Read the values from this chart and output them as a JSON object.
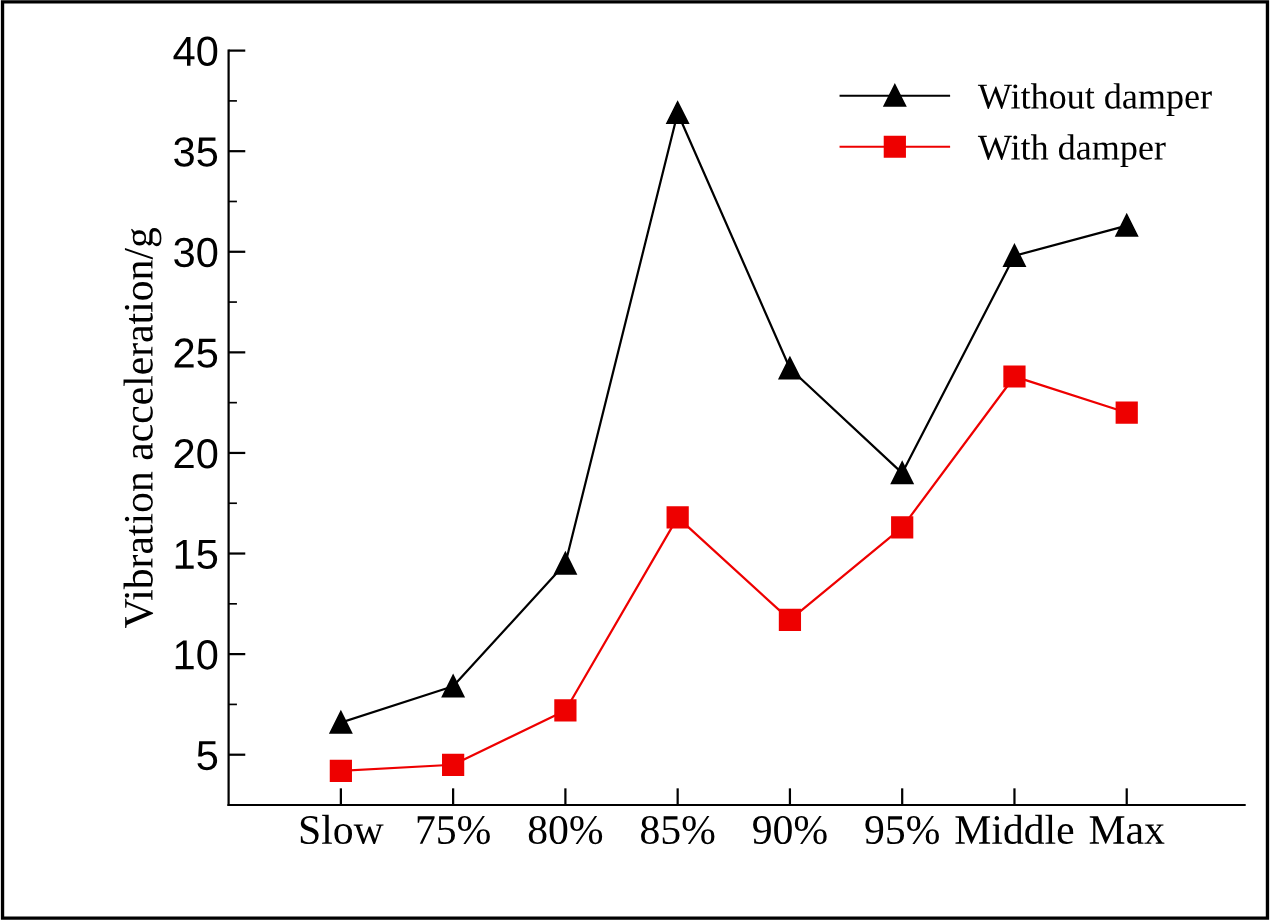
{
  "chart_data": {
    "type": "line",
    "ylabel": "Vibration acceleration/g",
    "categories": [
      "Slow",
      "75%",
      "80%",
      "85%",
      "90%",
      "95%",
      "Middle",
      "Max"
    ],
    "series": [
      {
        "name": "Without damper",
        "color": "#000000",
        "marker": "triangle",
        "values": [
          6.6,
          8.4,
          14.5,
          36.9,
          24.2,
          19.0,
          29.8,
          31.3
        ]
      },
      {
        "name": "With damper",
        "color": "#ee0000",
        "marker": "square",
        "values": [
          4.2,
          4.5,
          7.2,
          16.8,
          11.7,
          16.3,
          23.8,
          22.0
        ]
      }
    ],
    "ylim": [
      2.5,
      40
    ],
    "yticks": [
      5,
      10,
      15,
      20,
      25,
      30,
      35,
      40
    ],
    "grid": false,
    "legend": "top right",
    "line_style": "solid"
  }
}
